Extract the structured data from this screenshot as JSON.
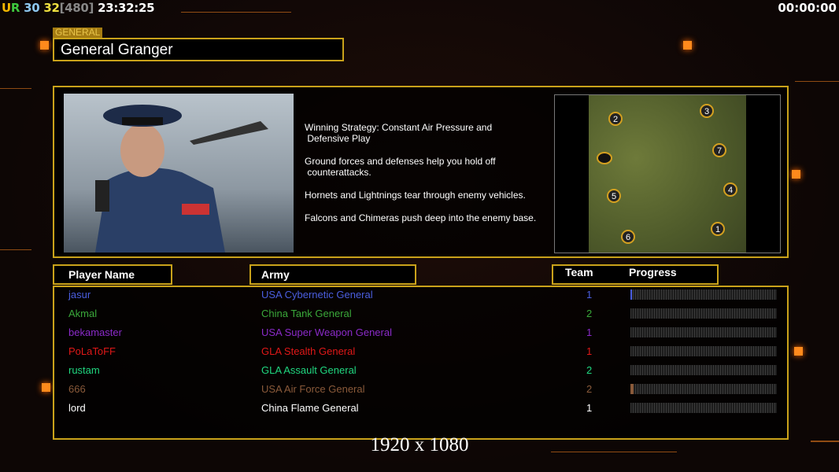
{
  "hud": {
    "ur": "UR",
    "fps": "30",
    "fps2": "32",
    "limit": "[480]",
    "time": "23:32:25",
    "timer": "00:00:00",
    "colors": {
      "u": "#f5b800",
      "r": "#3ec83e",
      "fps": "#8ec8f0",
      "fps2": "#f0e040",
      "limit": "#888888"
    }
  },
  "general": {
    "tag": "GENERAL",
    "name": "General Granger"
  },
  "strategy": [
    "Winning Strategy: Constant Air Pressure and\n Defensive Play",
    "Ground forces and defenses help you hold off\n counterattacks.",
    "Hornets and Lightnings tear through enemy vehicles.",
    "Falcons and Chimeras push deep into the enemy base."
  ],
  "map": {
    "markers": [
      "1",
      "2",
      "3",
      "4",
      "5",
      "6",
      "7"
    ]
  },
  "table": {
    "headers": {
      "player": "Player Name",
      "army": "Army",
      "team": "Team",
      "progress": "Progress"
    },
    "rows": [
      {
        "player": "jasur",
        "army": "USA Cybernetic General",
        "team": "1",
        "progress": 1,
        "color": "#4a5ee0"
      },
      {
        "player": "Akmal",
        "army": "China Tank General",
        "team": "2",
        "progress": 0,
        "color": "#3aa83a"
      },
      {
        "player": "bekamaster",
        "army": "USA Super Weapon General",
        "team": "1",
        "progress": 0,
        "color": "#8a2ac8"
      },
      {
        "player": "PoLaToFF",
        "army": "GLA Stealth General",
        "team": "1",
        "progress": 0,
        "color": "#e01818"
      },
      {
        "player": "rustam",
        "army": "GLA Assault General",
        "team": "2",
        "progress": 0,
        "color": "#20d880"
      },
      {
        "player": "666",
        "army": "USA Air Force General",
        "team": "2",
        "progress": 2,
        "color": "#8a5a3a"
      },
      {
        "player": "lord",
        "army": "China Flame General",
        "team": "1",
        "progress": 0,
        "color": "#ffffff"
      }
    ]
  },
  "resolution": "1920 x 1080"
}
